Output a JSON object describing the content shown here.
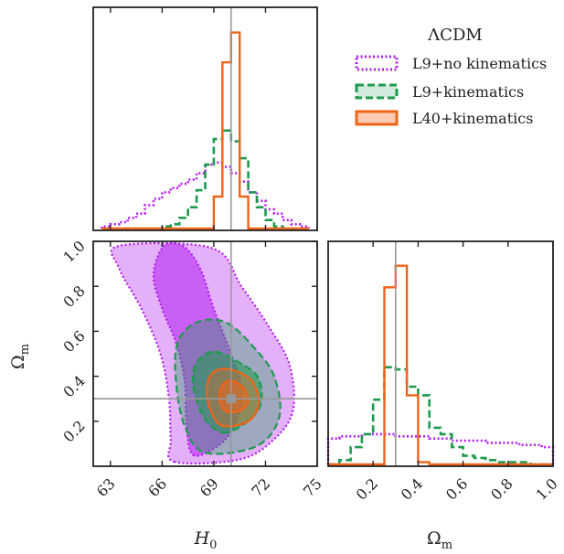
{
  "chart_data": {
    "type": "corner",
    "legend": {
      "title": "ΛCDM",
      "placement": "top-right",
      "entries": [
        {
          "label": "L9+no kinematics",
          "color": "#b21ef0",
          "linestyle": "dotted"
        },
        {
          "label": "L9+kinematics",
          "color": "#1e9a4f",
          "linestyle": "dashed"
        },
        {
          "label": "L40+kinematics",
          "color": "#f06418",
          "linestyle": "solid"
        }
      ]
    },
    "truth": {
      "H0": 70,
      "Om": 0.3
    },
    "h0_axis": {
      "label_main": "H",
      "label_sub": "0",
      "range": [
        62,
        75
      ],
      "ticks": [
        "63",
        "66",
        "69",
        "72",
        "75"
      ]
    },
    "om_axis": {
      "label_main": "Ω",
      "label_sub": "m",
      "range": [
        0.0,
        1.0
      ],
      "ticks_x": [
        "0.2",
        "0.4",
        "0.6",
        "0.8",
        "1.0"
      ],
      "ticks_y": [
        "0.2",
        "0.4",
        "0.6",
        "0.8",
        "1.0"
      ]
    },
    "h0_hist": {
      "bin_edges": [
        62.5,
        63,
        63.5,
        64,
        64.5,
        65,
        65.5,
        66,
        66.5,
        67,
        67.5,
        68,
        68.5,
        69,
        69.5,
        70,
        70.5,
        71,
        71.5,
        72,
        72.5,
        73,
        73.5,
        74,
        74.5
      ],
      "series": [
        {
          "name": "L9+no kinematics",
          "counts": [
            0.01,
            0.02,
            0.03,
            0.05,
            0.07,
            0.11,
            0.14,
            0.17,
            0.19,
            0.21,
            0.23,
            0.26,
            0.3,
            0.31,
            0.29,
            0.26,
            0.22,
            0.17,
            0.13,
            0.09,
            0.07,
            0.04,
            0.02,
            0.01
          ]
        },
        {
          "name": "L9+kinematics",
          "counts": [
            0,
            0,
            0,
            0,
            0,
            0,
            0,
            0.01,
            0.02,
            0.05,
            0.1,
            0.18,
            0.3,
            0.42,
            0.46,
            0.41,
            0.33,
            0.17,
            0.1,
            0.04,
            0.01,
            0,
            0,
            0
          ]
        },
        {
          "name": "L40+kinematics",
          "counts": [
            0,
            0,
            0,
            0,
            0,
            0,
            0,
            0,
            0,
            0,
            0,
            0,
            0,
            0.15,
            0.78,
            0.92,
            0.15,
            0,
            0,
            0,
            0,
            0,
            0,
            0
          ]
        }
      ]
    },
    "om_hist": {
      "bin_edges": [
        0.0,
        0.05,
        0.1,
        0.15,
        0.2,
        0.25,
        0.3,
        0.35,
        0.4,
        0.45,
        0.5,
        0.55,
        0.6,
        0.65,
        0.7,
        0.75,
        0.8,
        0.85,
        0.9,
        0.95,
        1.0
      ],
      "series": [
        {
          "name": "L9+no kinematics",
          "counts": [
            0.12,
            0.13,
            0.13,
            0.14,
            0.14,
            0.14,
            0.13,
            0.13,
            0.13,
            0.12,
            0.12,
            0.11,
            0.11,
            0.11,
            0.1,
            0.1,
            0.1,
            0.09,
            0.09,
            0.08
          ]
        },
        {
          "name": "L9+kinematics",
          "counts": [
            0,
            0.02,
            0.08,
            0.14,
            0.3,
            0.45,
            0.44,
            0.36,
            0.32,
            0.17,
            0.14,
            0.08,
            0.04,
            0.03,
            0.02,
            0.01,
            0.01,
            0.01,
            0,
            0
          ]
        },
        {
          "name": "L40+kinematics",
          "counts": [
            0,
            0,
            0,
            0,
            0,
            0.82,
            0.92,
            0.32,
            0.01,
            0,
            0,
            0,
            0,
            0,
            0,
            0,
            0,
            0,
            0,
            0
          ]
        }
      ]
    },
    "contours": [
      {
        "name": "L9+no kinematics",
        "levels": [
          {
            "sigma": 1,
            "points": [
              [
                67.8,
                0.05
              ],
              [
                69.4,
                0.1
              ],
              [
                70.3,
                0.2
              ],
              [
                70.6,
                0.35
              ],
              [
                70.0,
                0.5
              ],
              [
                69.0,
                0.7
              ],
              [
                68.2,
                0.88
              ],
              [
                67.2,
                0.98
              ],
              [
                66.1,
                0.98
              ],
              [
                65.5,
                0.85
              ],
              [
                66.0,
                0.7
              ],
              [
                66.8,
                0.55
              ],
              [
                67.3,
                0.38
              ],
              [
                67.4,
                0.2
              ]
            ]
          },
          {
            "sigma": 2,
            "points": [
              [
                66.7,
                0.02
              ],
              [
                70.5,
                0.03
              ],
              [
                72.5,
                0.12
              ],
              [
                73.6,
                0.25
              ],
              [
                73.4,
                0.45
              ],
              [
                72.2,
                0.62
              ],
              [
                70.6,
                0.8
              ],
              [
                68.9,
                0.97
              ],
              [
                63.5,
                0.98
              ],
              [
                63.5,
                0.88
              ],
              [
                64.8,
                0.7
              ],
              [
                65.9,
                0.5
              ],
              [
                66.4,
                0.3
              ],
              [
                66.5,
                0.12
              ]
            ]
          }
        ]
      },
      {
        "name": "L9+kinematics",
        "levels": [
          {
            "sigma": 1,
            "points": [
              [
                69.5,
                0.15
              ],
              [
                70.8,
                0.19
              ],
              [
                71.7,
                0.27
              ],
              [
                71.6,
                0.39
              ],
              [
                70.5,
                0.46
              ],
              [
                69.0,
                0.51
              ],
              [
                68.0,
                0.46
              ],
              [
                67.8,
                0.36
              ],
              [
                68.4,
                0.22
              ]
            ]
          },
          {
            "sigma": 2,
            "points": [
              [
                68.5,
                0.06
              ],
              [
                71.5,
                0.09
              ],
              [
                72.8,
                0.22
              ],
              [
                72.5,
                0.4
              ],
              [
                71.3,
                0.53
              ],
              [
                69.7,
                0.64
              ],
              [
                68.0,
                0.64
              ],
              [
                66.9,
                0.55
              ],
              [
                66.8,
                0.38
              ],
              [
                67.3,
                0.18
              ]
            ]
          }
        ]
      },
      {
        "name": "L40+kinematics",
        "levels": [
          {
            "sigma": 1,
            "points": [
              [
                69.9,
                0.24
              ],
              [
                70.6,
                0.25
              ],
              [
                71.0,
                0.29
              ],
              [
                70.7,
                0.35
              ],
              [
                70.0,
                0.38
              ],
              [
                69.5,
                0.36
              ],
              [
                69.3,
                0.31
              ],
              [
                69.5,
                0.26
              ]
            ]
          },
          {
            "sigma": 2,
            "points": [
              [
                69.5,
                0.18
              ],
              [
                71.0,
                0.2
              ],
              [
                71.6,
                0.28
              ],
              [
                71.2,
                0.38
              ],
              [
                70.0,
                0.43
              ],
              [
                69.0,
                0.42
              ],
              [
                68.6,
                0.35
              ],
              [
                68.8,
                0.25
              ]
            ]
          }
        ]
      }
    ]
  }
}
